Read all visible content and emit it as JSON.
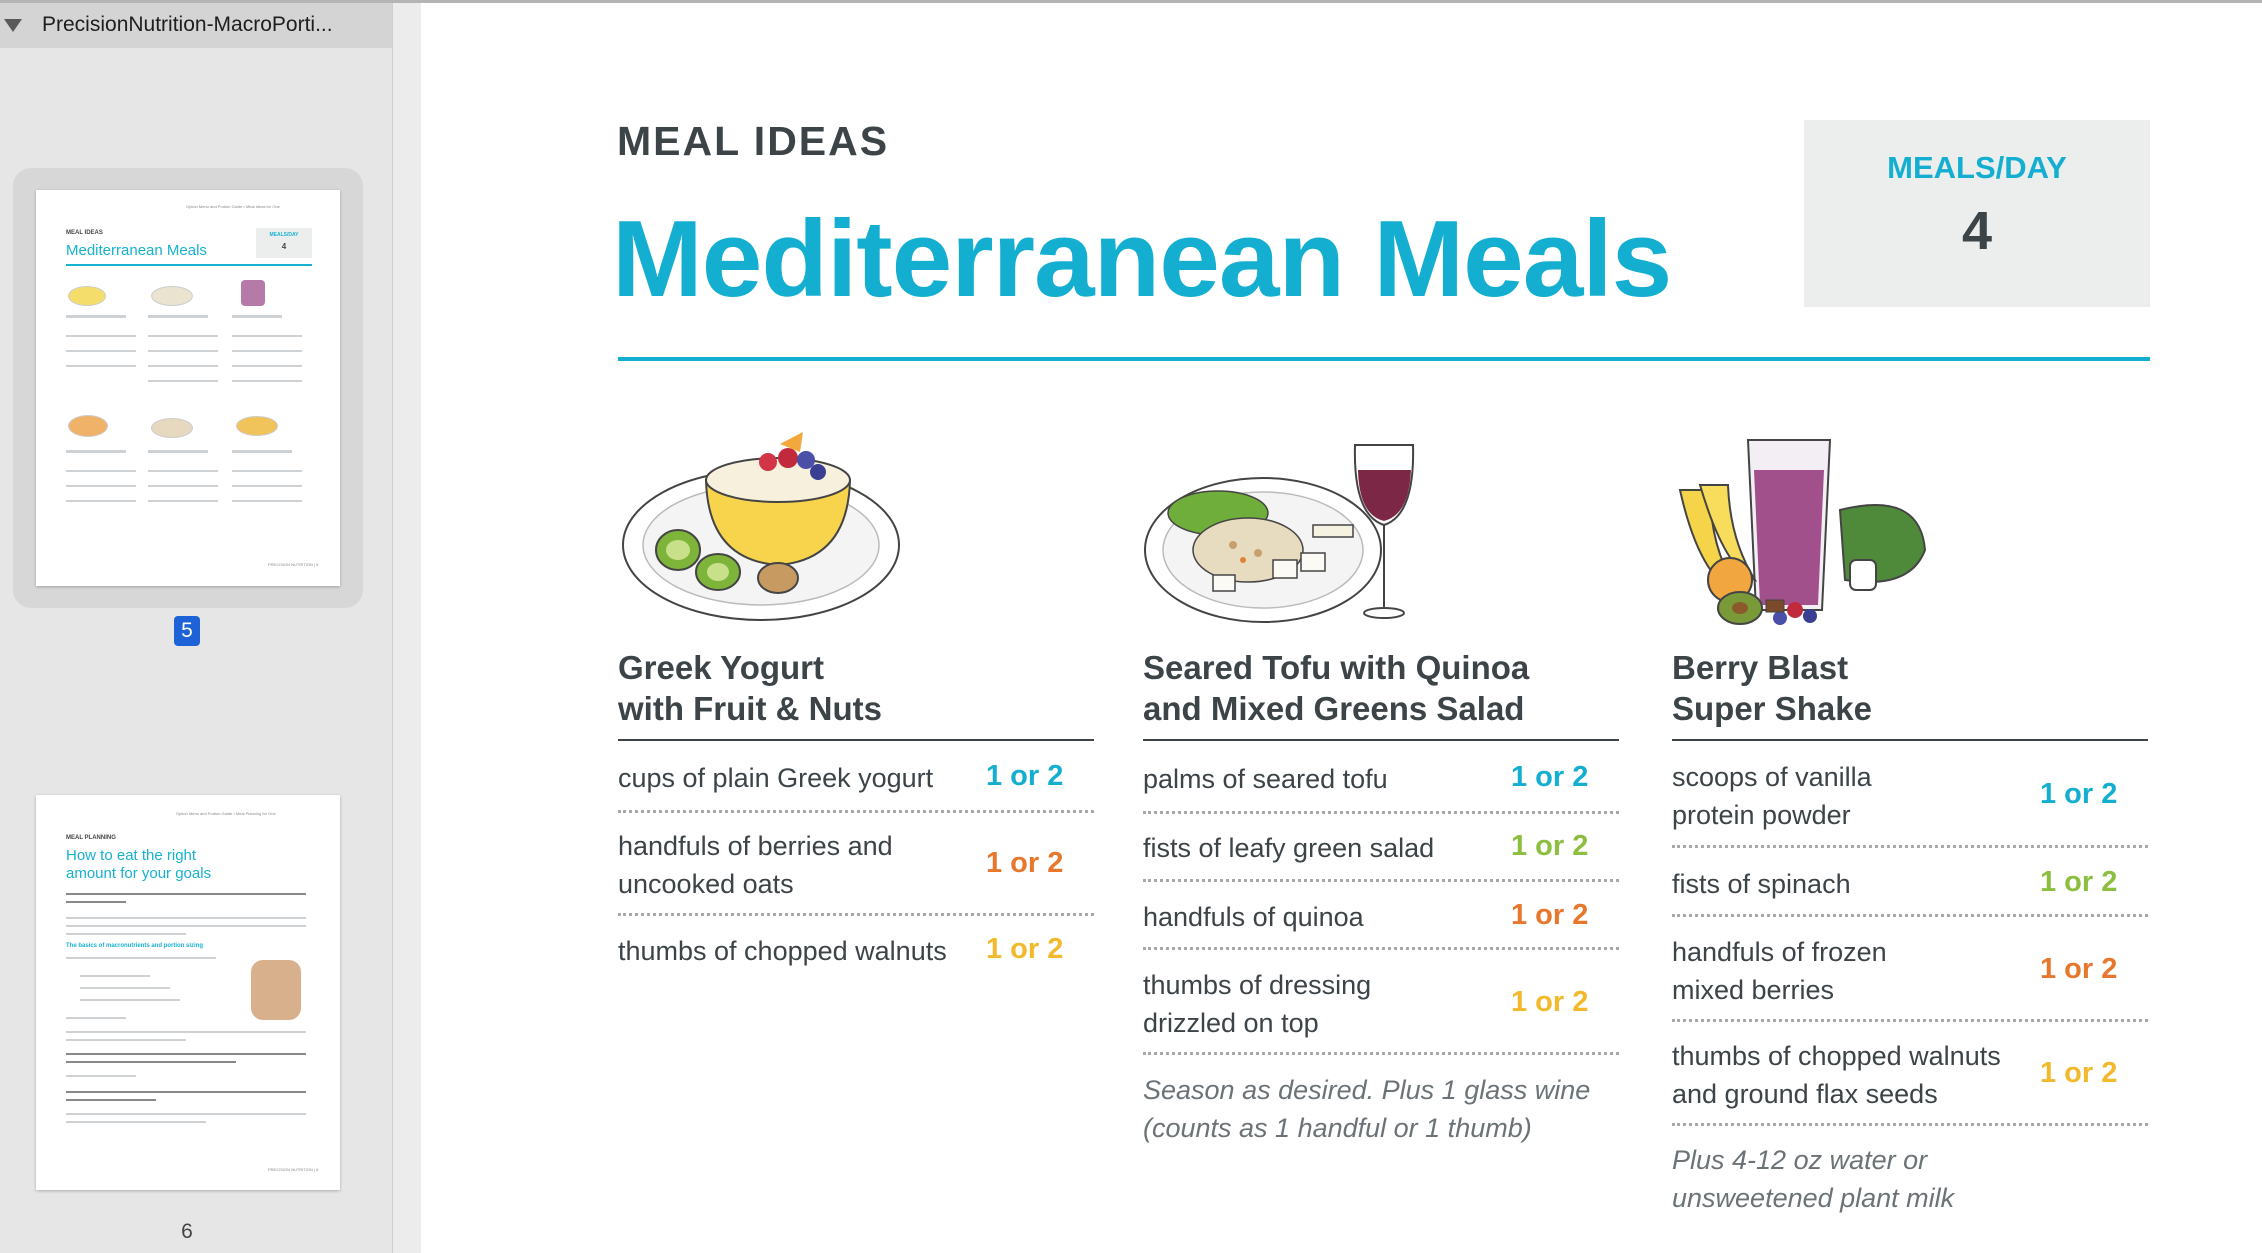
{
  "sidebar": {
    "title": "PrecisionNutrition-MacroPorti...",
    "selected_page": "5",
    "next_page": "6",
    "thumb1": {
      "breadcrumb": "Option Menu and Portion Guide • Meal Ideas for One",
      "kicker": "MEAL IDEAS",
      "title": "Mediterranean Meals",
      "box_label": "MEALS/DAY",
      "box_value": "4",
      "footer": "PRECISION NUTRITION  |  5"
    },
    "thumb2": {
      "breadcrumb": "Option Menu and Portion Guide • Meal Planning for One",
      "kicker": "MEAL PLANNING",
      "title_line1": "How to eat the right",
      "title_line2": "amount for your goals",
      "subhead": "The basics of macronutrients and portion sizing",
      "footer": "PRECISION NUTRITION  |  6"
    }
  },
  "header": {
    "kicker": "MEAL IDEAS",
    "title": "Mediterranean Meals",
    "meals_per_day_label": "MEALS/DAY",
    "meals_per_day_value": "4"
  },
  "colors": {
    "accent_blue": "#14afd0",
    "green": "#8cbf3f",
    "orange": "#e8772e",
    "yellow": "#f2b92c",
    "text_dark": "#3c4448"
  },
  "meals": [
    {
      "title_line1": "Greek Yogurt",
      "title_line2": "with Fruit & Nuts",
      "icon": "yogurt-bowl-icon",
      "rows": [
        {
          "label": "cups of plain Greek yogurt",
          "value": "1 or 2",
          "color": "blue"
        },
        {
          "label_line1": "handfuls of berries and",
          "label_line2": "uncooked oats",
          "value": "1 or 2",
          "color": "orange"
        },
        {
          "label": "thumbs of chopped walnuts",
          "value": "1 or 2",
          "color": "yellow"
        }
      ]
    },
    {
      "title_line1": "Seared Tofu with Quinoa",
      "title_line2": "and Mixed Greens Salad",
      "icon": "tofu-quinoa-plate-icon",
      "rows": [
        {
          "label": "palms of seared tofu",
          "value": "1 or 2",
          "color": "blue"
        },
        {
          "label": "fists of leafy green salad",
          "value": "1 or 2",
          "color": "green"
        },
        {
          "label": "handfuls of quinoa",
          "value": "1 or 2",
          "color": "orange"
        },
        {
          "label_line1": "thumbs of dressing",
          "label_line2": "drizzled on top",
          "value": "1 or 2",
          "color": "yellow"
        }
      ],
      "note_line1": "Season as desired. Plus 1 glass wine",
      "note_line2": "(counts as 1 handful or 1 thumb)"
    },
    {
      "title_line1": "Berry Blast",
      "title_line2": "Super Shake",
      "icon": "berry-shake-icon",
      "rows": [
        {
          "label_line1": "scoops of vanilla",
          "label_line2": "protein powder",
          "value": "1 or 2",
          "color": "blue"
        },
        {
          "label": "fists of spinach",
          "value": "1 or 2",
          "color": "green"
        },
        {
          "label_line1": "handfuls of frozen",
          "label_line2": "mixed berries",
          "value": "1 or 2",
          "color": "orange"
        },
        {
          "label_line1": "thumbs of chopped walnuts",
          "label_line2": "and ground flax seeds",
          "value": "1 or 2",
          "color": "yellow"
        }
      ],
      "note_line1": "Plus 4-12 oz water or",
      "note_line2": "unsweetened plant milk"
    }
  ]
}
